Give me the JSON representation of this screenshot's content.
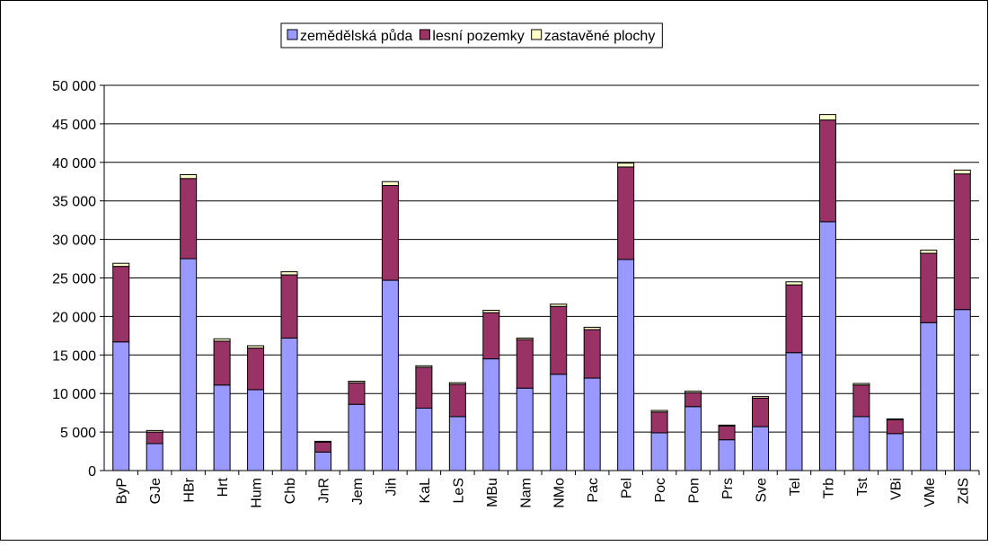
{
  "chart_data": {
    "type": "stacked_bar",
    "categories": [
      "ByP",
      "GJe",
      "HBr",
      "Hrt",
      "Hum",
      "Chb",
      "JnR",
      "Jem",
      "Jih",
      "KaL",
      "LeS",
      "MBu",
      "Nam",
      "NMo",
      "Pac",
      "Pel",
      "Poc",
      "Pon",
      "Prs",
      "Sve",
      "Tel",
      "Trb",
      "Tst",
      "VBi",
      "VMe",
      "ZdS"
    ],
    "series": [
      {
        "name": "zemědělská půda",
        "color": "#9999ff",
        "values": [
          16700,
          3500,
          27500,
          11100,
          10500,
          17200,
          2400,
          8600,
          24700,
          8100,
          7000,
          14500,
          10700,
          12500,
          12000,
          27400,
          4900,
          8300,
          4000,
          5700,
          15300,
          32300,
          7000,
          4800,
          19200,
          20900
        ]
      },
      {
        "name": "lesní pozemky",
        "color": "#993366",
        "values": [
          9800,
          1500,
          10400,
          5700,
          5400,
          8200,
          1300,
          2800,
          12300,
          5300,
          4200,
          6000,
          6300,
          8800,
          6300,
          12000,
          2700,
          1800,
          1800,
          3700,
          8800,
          13200,
          4100,
          1800,
          9000,
          17600
        ]
      },
      {
        "name": "zastavěné plochy",
        "color": "#ffffcc",
        "values": [
          400,
          200,
          500,
          300,
          300,
          400,
          100,
          200,
          500,
          200,
          200,
          300,
          200,
          300,
          300,
          500,
          200,
          200,
          100,
          200,
          400,
          700,
          200,
          100,
          400,
          500
        ]
      }
    ],
    "ylim": [
      0,
      50000
    ],
    "yticks": [
      0,
      {
        "value": 5000,
        "label": "5 000"
      },
      {
        "value": 10000,
        "label": "10 000"
      },
      {
        "value": 15000,
        "label": "15 000"
      },
      {
        "value": 20000,
        "label": "20 000"
      },
      {
        "value": 25000,
        "label": "25 000"
      },
      {
        "value": 30000,
        "label": "30 000"
      },
      {
        "value": 35000,
        "label": "35 000"
      },
      {
        "value": 40000,
        "label": "40 000"
      },
      {
        "value": 45000,
        "label": "45 000"
      },
      {
        "value": 50000,
        "label": "50 000"
      }
    ],
    "grid": true,
    "legend": "top"
  }
}
